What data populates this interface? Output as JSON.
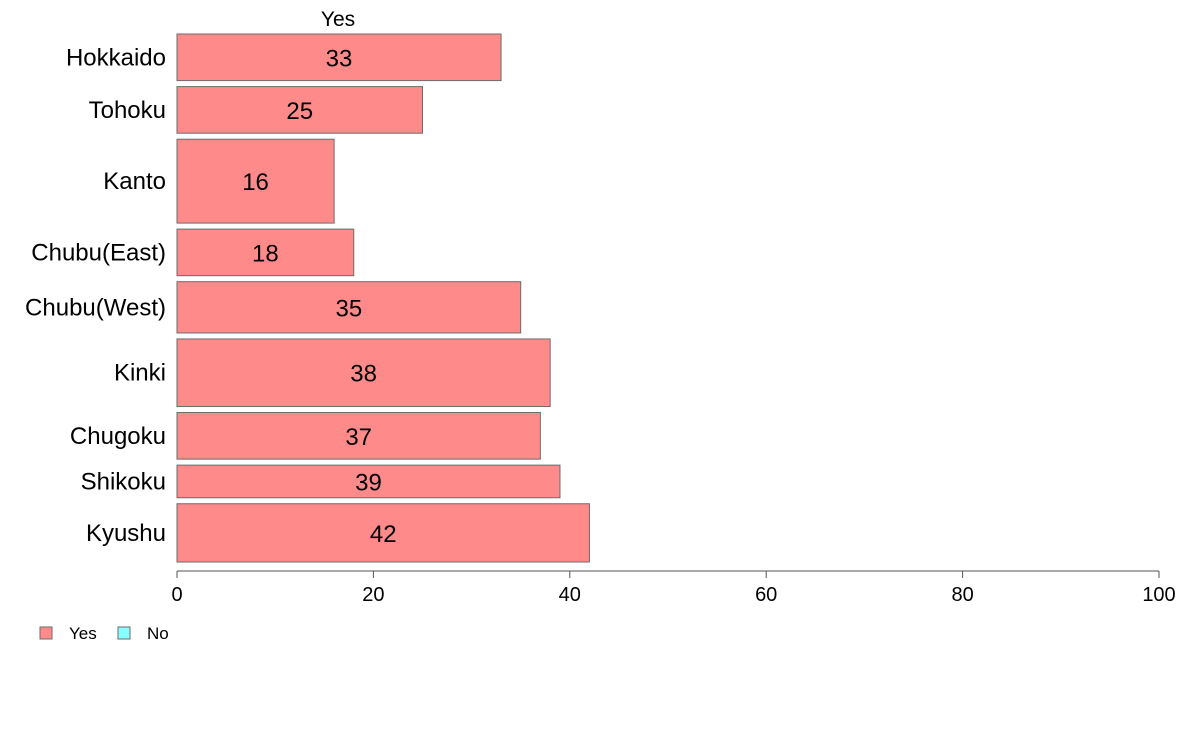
{
  "chart_data": {
    "type": "bar",
    "orientation": "horizontal",
    "stacked": true,
    "top_label": "Yes",
    "categories": [
      "Hokkaido",
      "Tohoku",
      "Kanto",
      "Chubu(East)",
      "Chubu(West)",
      "Kinki",
      "Chugoku",
      "Shikoku",
      "Kyushu"
    ],
    "series": [
      {
        "name": "Yes",
        "color": "#ff8a8a",
        "values": [
          33,
          25,
          16,
          18,
          35,
          38,
          37,
          39,
          42
        ]
      },
      {
        "name": "No",
        "color": "#8affff",
        "values": [
          0,
          0,
          0,
          0,
          0,
          0,
          0,
          0,
          0
        ]
      }
    ],
    "data_labels": [
      "33",
      "25",
      "16",
      "18",
      "35",
      "38",
      "37",
      "39",
      "42"
    ],
    "row_weights": [
      1,
      1,
      1.8,
      1,
      1.1,
      1.45,
      1,
      0.7,
      1.25
    ],
    "xlim": [
      0,
      100
    ],
    "xticks": [
      0,
      20,
      40,
      60,
      80,
      100
    ],
    "grid": false,
    "legend": {
      "placement": "bottom-left",
      "entries": [
        "Yes",
        "No"
      ]
    }
  }
}
